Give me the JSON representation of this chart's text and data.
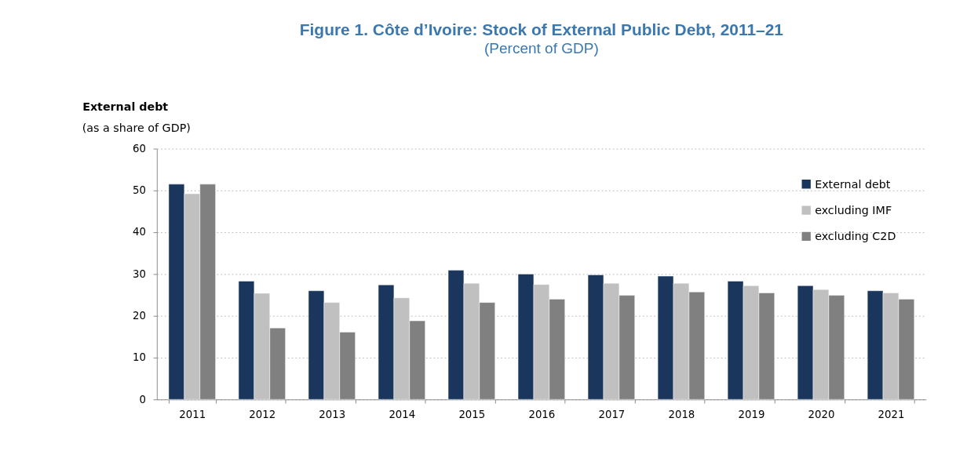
{
  "chart_data": {
    "type": "bar",
    "title": "Figure 1. Côte d’Ivoire: Stock of External Public Debt, 2011–21",
    "subtitle": "(Percent of GDP)",
    "ylabel": "External debt",
    "annotations": [
      "(as a share of GDP)"
    ],
    "categories": [
      "2011",
      "2012",
      "2013",
      "2014",
      "2015",
      "2016",
      "2017",
      "2018",
      "2019",
      "2020",
      "2021"
    ],
    "series": [
      {
        "name": "External debt",
        "color": "#1a365d",
        "values": [
          51.5,
          28.3,
          26.0,
          27.4,
          30.9,
          30.0,
          29.8,
          29.5,
          28.3,
          27.2,
          26.0
        ]
      },
      {
        "name": "excluding IMF",
        "color": "#c0c0c0",
        "values": [
          49.2,
          25.4,
          23.2,
          24.3,
          27.8,
          27.5,
          27.8,
          27.8,
          27.2,
          26.3,
          25.5
        ]
      },
      {
        "name": "excluding C2D",
        "color": "#808080",
        "values": [
          51.5,
          17.1,
          16.1,
          18.8,
          23.2,
          24.0,
          24.9,
          25.7,
          25.5,
          24.9,
          24.0
        ]
      }
    ],
    "ylim": [
      0,
      60
    ],
    "yticks": [
      0,
      10,
      20,
      30,
      40,
      50,
      60
    ],
    "grid": "y",
    "legend": "top right"
  }
}
